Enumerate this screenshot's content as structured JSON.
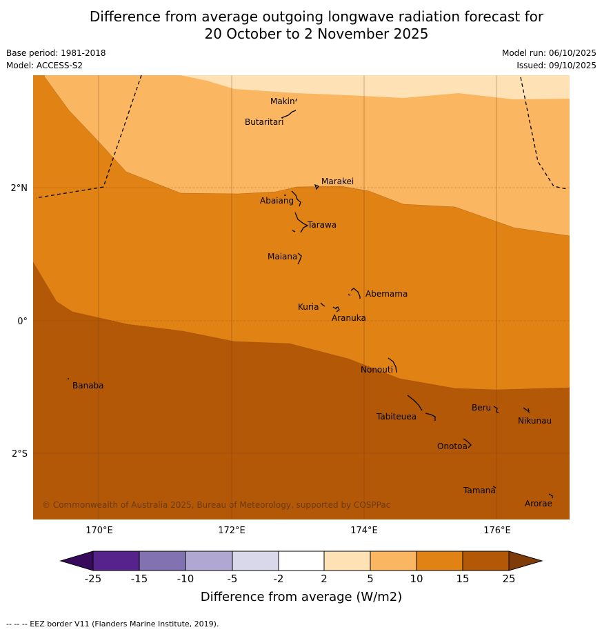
{
  "title": {
    "line1": "Difference from average outgoing longwave radiation forecast for",
    "line2": "20 October to 2 November 2025"
  },
  "info": {
    "base_period": "Base period: 1981-2018",
    "model": "Model: ACCESS-S2",
    "model_run": "Model run: 06/10/2025",
    "issued": "Issued: 09/10/2025"
  },
  "map": {
    "lat_labels": [
      "2°N",
      "0°",
      "2°S"
    ],
    "lon_labels": [
      "170°E",
      "172°E",
      "174°E",
      "176°E"
    ],
    "copyright": "© Commonwealth of Australia 2025, Bureau of Meteorology, supported by COSPPac",
    "places": [
      "Makin",
      "Butaritari",
      "Marakei",
      "Abaiang",
      "Tarawa",
      "Maiana",
      "Abemama",
      "Kuria",
      "Aranuka",
      "Banaba",
      "Nonouti",
      "Beru",
      "Tabiteuea",
      "Nikunau",
      "Onotoa",
      "Tamana",
      "Arorae"
    ]
  },
  "colorbar": {
    "title": "Difference from average (W/m2)",
    "tick_labels": [
      "-25",
      "-15",
      "-10",
      "-5",
      "-2",
      "2",
      "5",
      "10",
      "15",
      "25"
    ],
    "colors": [
      "#380a5c",
      "#56228c",
      "#8272b1",
      "#b0a8d2",
      "#d9d7ea",
      "#ffffff",
      "#fee2b6",
      "#fbb661",
      "#e08214",
      "#b35807",
      "#7f3b08"
    ]
  },
  "footer": "--  --  -- EEZ border V11 (Flanders Marine Institute, 2019)."
}
